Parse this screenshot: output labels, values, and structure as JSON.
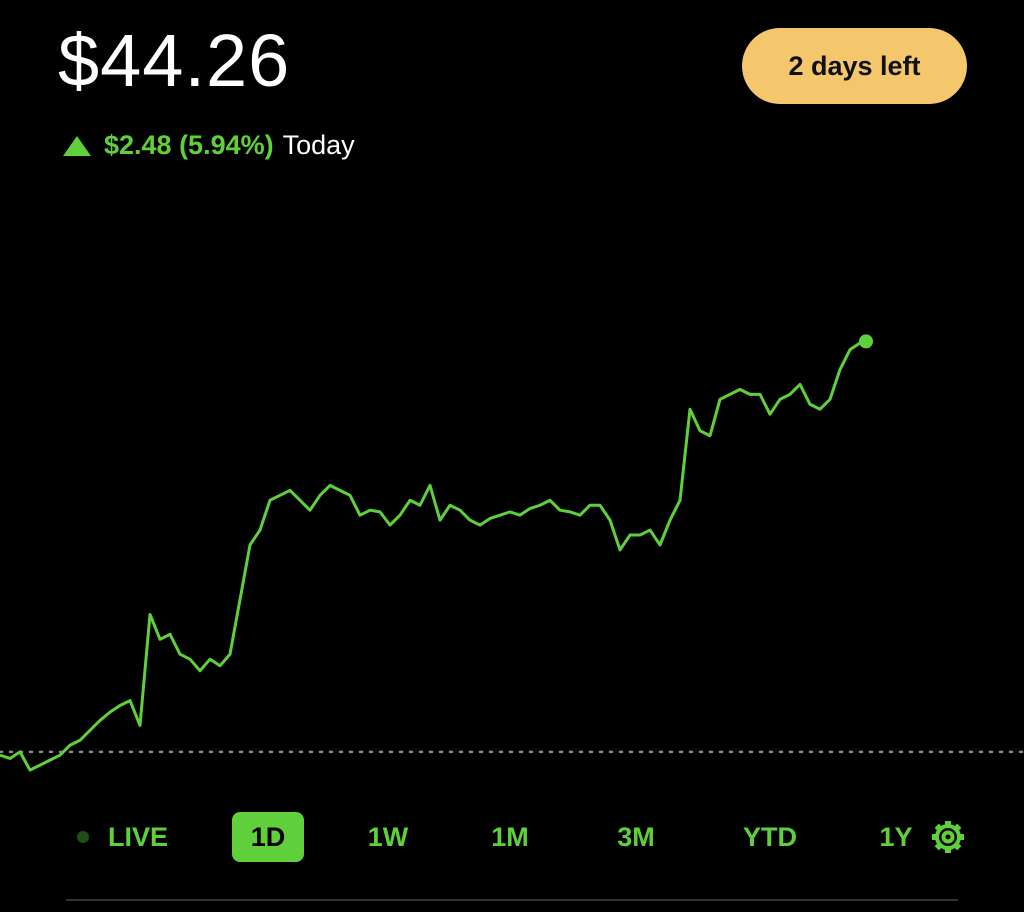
{
  "header": {
    "price": "$44.26",
    "change": "$2.48 (5.94%)",
    "change_label": "Today",
    "badge": "2 days left"
  },
  "chart_data": {
    "type": "line",
    "color": "#5fd03c",
    "reference_line": 41.78,
    "ylim": [
      41.61,
      44.51
    ],
    "values": [
      41.76,
      41.74,
      41.78,
      41.67,
      41.7,
      41.73,
      41.76,
      41.82,
      41.85,
      41.91,
      41.97,
      42.02,
      42.06,
      42.09,
      41.94,
      42.61,
      42.46,
      42.49,
      42.37,
      42.34,
      42.27,
      42.34,
      42.3,
      42.37,
      42.7,
      43.03,
      43.12,
      43.3,
      43.33,
      43.36,
      43.3,
      43.24,
      43.33,
      43.39,
      43.36,
      43.33,
      43.21,
      43.24,
      43.23,
      43.15,
      43.21,
      43.3,
      43.27,
      43.39,
      43.18,
      43.27,
      43.24,
      43.18,
      43.15,
      43.19,
      43.21,
      43.23,
      43.21,
      43.25,
      43.27,
      43.3,
      43.24,
      43.23,
      43.21,
      43.27,
      43.27,
      43.18,
      43.0,
      43.09,
      43.09,
      43.12,
      43.03,
      43.18,
      43.3,
      43.85,
      43.72,
      43.69,
      43.91,
      43.94,
      43.97,
      43.94,
      43.94,
      43.82,
      43.91,
      43.94,
      44.0,
      43.88,
      43.85,
      43.91,
      44.09,
      44.21,
      44.25,
      44.26
    ]
  },
  "time_ranges": [
    "LIVE",
    "1D",
    "1W",
    "1M",
    "3M",
    "YTD",
    "1Y"
  ]
}
